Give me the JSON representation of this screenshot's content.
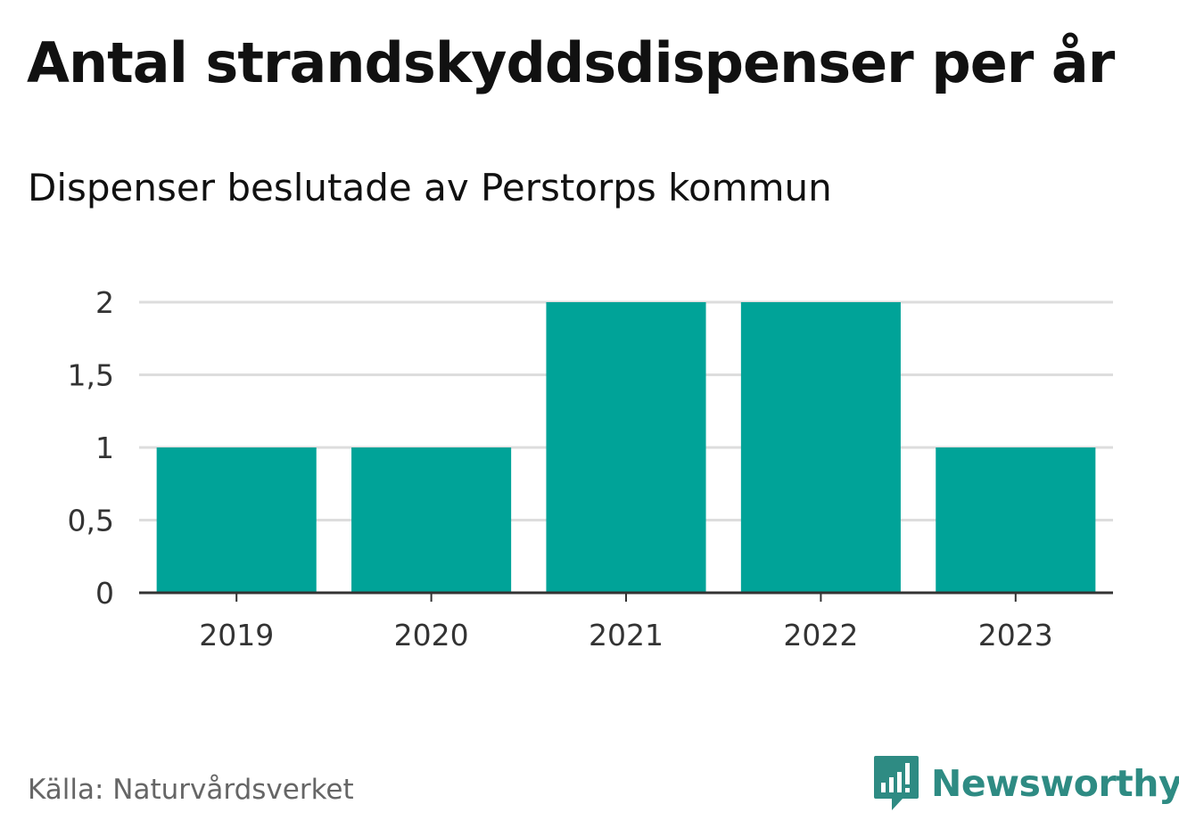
{
  "title": "Antal strandskyddsdispenser per år",
  "subtitle": "Dispenser beslutade av Perstorps kommun",
  "source": "Källa: Naturvårdsverket",
  "brand": {
    "name": "Newsworthy",
    "icon": "newsworthy-logo-icon",
    "color": "#2e8b83"
  },
  "colors": {
    "bar": "#00a398",
    "grid": "#dddddd",
    "axis": "#333333",
    "tick_text": "#333333"
  },
  "chart_data": {
    "type": "bar",
    "title": "Antal strandskyddsdispenser per år",
    "subtitle": "Dispenser beslutade av Perstorps kommun",
    "categories": [
      "2019",
      "2020",
      "2021",
      "2022",
      "2023"
    ],
    "values": [
      1,
      1,
      2,
      2,
      1
    ],
    "xlabel": "",
    "ylabel": "",
    "ylim": [
      0,
      2
    ],
    "yticks": [
      0,
      0.5,
      1,
      1.5,
      2
    ],
    "ytick_labels": [
      "0",
      "0,5",
      "1",
      "1,5",
      "2"
    ],
    "grid": true,
    "legend": "none"
  }
}
